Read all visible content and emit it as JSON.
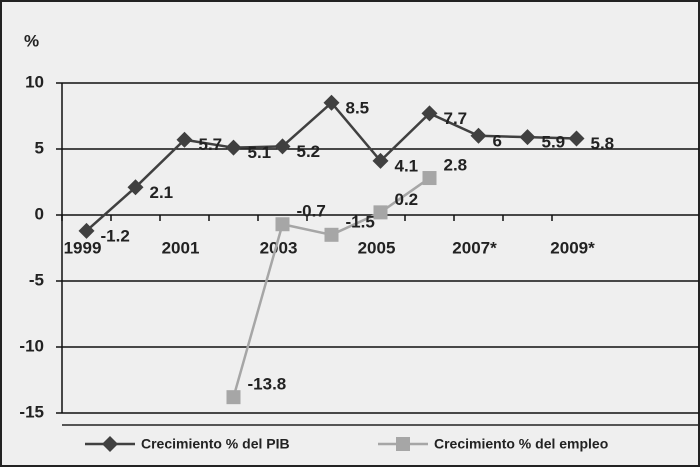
{
  "chart_data": {
    "type": "line",
    "y_label": "%",
    "categories": [
      "1999",
      null,
      "2001",
      null,
      "2003",
      null,
      "2005",
      null,
      "2007*",
      null,
      "2009*"
    ],
    "series": [
      {
        "name": "Crecimiento % del PIB",
        "color": "#404040",
        "marker": "diamond",
        "values": [
          -1.2,
          2.1,
          5.7,
          5.1,
          5.2,
          8.5,
          4.1,
          7.7,
          6,
          5.9,
          5.8
        ]
      },
      {
        "name": "Crecimiento % del empleo",
        "color": "#a6a6a6",
        "marker": "square",
        "values": [
          null,
          null,
          null,
          -13.8,
          -0.7,
          -1.5,
          0.2,
          2.8,
          null,
          null,
          null
        ]
      }
    ],
    "ylim": [
      -15,
      10
    ],
    "yticks": [
      -15,
      -10,
      -5,
      0,
      5,
      10
    ],
    "grid": true
  }
}
